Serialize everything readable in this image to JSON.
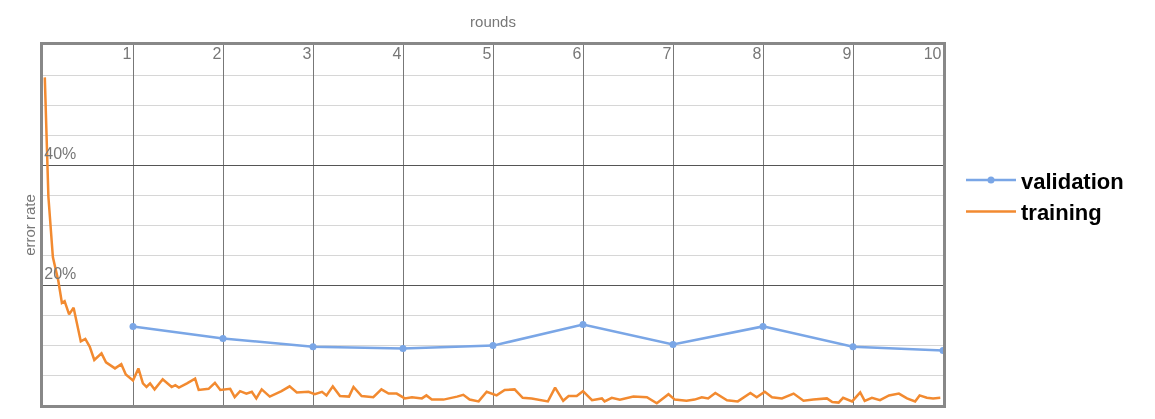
{
  "chart_data": {
    "type": "line",
    "xlabel": "rounds",
    "ylabel": "error rate",
    "xlim": [
      0,
      10
    ],
    "xticks": [
      1,
      2,
      3,
      4,
      5,
      6,
      7,
      8,
      9,
      10
    ],
    "ylim": [
      0,
      60
    ],
    "yticks": [
      {
        "value": 0,
        "label": null
      },
      {
        "value": 5,
        "label": null
      },
      {
        "value": 10,
        "label": null
      },
      {
        "value": 15,
        "label": null
      },
      {
        "value": 20,
        "label": "20%"
      },
      {
        "value": 25,
        "label": null
      },
      {
        "value": 30,
        "label": null
      },
      {
        "value": 35,
        "label": null
      },
      {
        "value": 40,
        "label": "40%"
      },
      {
        "value": 45,
        "label": null
      },
      {
        "value": 50,
        "label": null
      },
      {
        "value": 55,
        "label": null
      }
    ],
    "grid": true,
    "legend": "right",
    "series": [
      {
        "name": "validation",
        "color": "#7aa6e6",
        "marker": "circle",
        "x": [
          1,
          2,
          3,
          4,
          5,
          6,
          7,
          8,
          9,
          10
        ],
        "values": [
          13.1,
          11.1,
          9.7,
          9.4,
          9.9,
          13.4,
          10.1,
          13.1,
          9.7,
          9.1
        ]
      },
      {
        "name": "training",
        "color": "#f28a30",
        "marker": "none",
        "x": [
          0.02,
          0.06,
          0.11,
          0.17,
          0.21,
          0.24,
          0.29,
          0.34,
          0.42,
          0.47,
          0.52,
          0.57,
          0.65,
          0.7,
          0.8,
          0.87,
          0.92,
          1.0,
          1.06,
          1.11,
          1.15,
          1.19,
          1.24,
          1.33,
          1.43,
          1.47,
          1.51,
          1.6,
          1.69,
          1.73,
          1.84,
          1.91,
          1.97,
          2.08,
          2.13,
          2.19,
          2.26,
          2.32,
          2.37,
          2.43,
          2.52,
          2.65,
          2.74,
          2.82,
          2.95,
          3.02,
          3.1,
          3.15,
          3.22,
          3.3,
          3.4,
          3.45,
          3.54,
          3.67,
          3.76,
          3.84,
          3.93,
          4.02,
          4.1,
          4.21,
          4.26,
          4.32,
          4.45,
          4.6,
          4.67,
          4.74,
          4.84,
          4.93,
          5.04,
          5.13,
          5.24,
          5.33,
          5.43,
          5.61,
          5.69,
          5.78,
          5.84,
          5.93,
          6.0,
          6.1,
          6.21,
          6.24,
          6.32,
          6.41,
          6.56,
          6.71,
          6.82,
          6.95,
          7.02,
          7.15,
          7.24,
          7.32,
          7.39,
          7.47,
          7.6,
          7.72,
          7.86,
          7.93,
          8.02,
          8.1,
          8.21,
          8.34,
          8.45,
          8.56,
          8.71,
          8.77,
          8.84,
          8.89,
          8.99,
          9.08,
          9.13,
          9.21,
          9.3,
          9.4,
          9.51,
          9.6,
          9.69,
          9.74,
          9.82,
          9.89,
          9.97
        ],
        "values": [
          54.6,
          34.7,
          24.6,
          20.7,
          17.0,
          17.3,
          15.1,
          16.2,
          10.6,
          11.0,
          9.7,
          7.5,
          8.6,
          7.1,
          6.1,
          6.8,
          5.1,
          4.1,
          6.1,
          3.6,
          3.0,
          3.6,
          2.6,
          4.3,
          3.0,
          3.3,
          2.9,
          3.6,
          4.4,
          2.5,
          2.7,
          3.7,
          2.5,
          2.7,
          1.3,
          2.3,
          1.9,
          2.2,
          1.1,
          2.6,
          1.4,
          2.3,
          3.1,
          2.1,
          2.2,
          1.8,
          2.2,
          1.6,
          3.1,
          1.5,
          1.4,
          3.0,
          1.5,
          1.3,
          2.6,
          1.9,
          1.9,
          1.1,
          1.3,
          1.1,
          1.6,
          0.9,
          0.9,
          1.4,
          1.7,
          0.9,
          0.6,
          2.2,
          1.6,
          2.5,
          2.6,
          1.2,
          1.1,
          0.6,
          2.9,
          0.7,
          1.5,
          1.5,
          2.3,
          0.8,
          1.1,
          0.6,
          1.2,
          0.9,
          1.4,
          1.3,
          0.3,
          1.8,
          0.9,
          0.7,
          0.9,
          1.3,
          1.1,
          2.0,
          0.8,
          0.6,
          2.0,
          1.3,
          2.2,
          1.3,
          1.1,
          1.9,
          0.7,
          0.9,
          1.1,
          0.5,
          0.4,
          1.2,
          0.6,
          2.1,
          0.7,
          1.2,
          0.8,
          1.6,
          1.9,
          1.1,
          0.6,
          1.6,
          1.2,
          1.1,
          1.2
        ]
      }
    ]
  }
}
